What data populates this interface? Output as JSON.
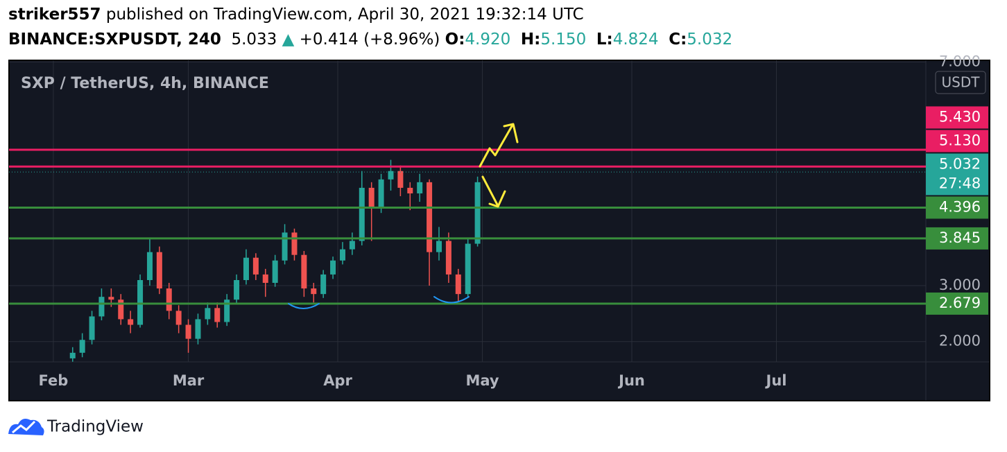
{
  "header": {
    "user": "striker557",
    "published": "published on TradingView.com, April 30, 2021 19:32:14 UTC",
    "symbol": "BINANCE:SXPUSDT, 240",
    "last": "5.033",
    "change": "+0.414 (+8.96%)",
    "ohlc": [
      {
        "key": "O:",
        "value": "4.920"
      },
      {
        "key": "H:",
        "value": "5.150"
      },
      {
        "key": "L:",
        "value": "4.824"
      },
      {
        "key": "C:",
        "value": "5.032"
      }
    ]
  },
  "footer": {
    "brand": "TradingView"
  },
  "chart_data": {
    "type": "candlestick",
    "title": "SXP / TetherUS, 4h, BINANCE",
    "currency": "USDT",
    "up_color": "#26a69a",
    "down_color": "#ef5350",
    "x": [
      4,
      6,
      8,
      10,
      12,
      14,
      16,
      18,
      20,
      22,
      24,
      26,
      28,
      30,
      32,
      34,
      36,
      38,
      40,
      42,
      44,
      46,
      48,
      50,
      52,
      54,
      56,
      58,
      60,
      62,
      64,
      66,
      68,
      70,
      72,
      74,
      76,
      78,
      80,
      82,
      84,
      86,
      88
    ],
    "open": [
      1.7,
      1.8,
      2.03,
      2.45,
      2.8,
      2.75,
      2.4,
      2.3,
      3.1,
      3.6,
      2.95,
      2.55,
      2.3,
      2.05,
      2.4,
      2.6,
      2.35,
      2.75,
      3.1,
      3.5,
      3.2,
      3.05,
      3.45,
      3.95,
      3.55,
      2.95,
      2.85,
      3.2,
      3.45,
      3.65,
      3.8,
      4.75,
      4.4,
      4.9,
      5.05,
      4.75,
      4.65,
      4.85,
      3.6,
      3.8,
      3.2,
      2.85,
      3.75
    ],
    "high": [
      1.9,
      2.15,
      2.55,
      2.95,
      2.95,
      2.85,
      2.55,
      3.2,
      3.85,
      3.7,
      3.05,
      2.65,
      2.4,
      2.5,
      2.7,
      2.7,
      2.85,
      3.2,
      3.65,
      3.58,
      3.3,
      3.55,
      4.1,
      4.02,
      3.62,
      3.05,
      3.28,
      3.52,
      3.78,
      3.95,
      5.05,
      4.85,
      5.0,
      5.25,
      5.15,
      4.85,
      5.0,
      4.9,
      4.05,
      3.95,
      3.3,
      3.85,
      4.95
    ],
    "low": [
      1.64,
      1.72,
      1.95,
      2.38,
      2.62,
      2.3,
      2.15,
      2.25,
      3.0,
      2.85,
      2.4,
      2.15,
      1.8,
      1.95,
      2.3,
      2.25,
      2.28,
      2.68,
      3.02,
      3.1,
      2.8,
      2.98,
      3.38,
      3.45,
      2.8,
      2.7,
      2.78,
      3.12,
      3.38,
      3.55,
      3.72,
      3.8,
      4.3,
      4.7,
      4.6,
      4.35,
      4.5,
      3.0,
      3.45,
      3.05,
      2.72,
      2.78,
      3.7
    ],
    "close": [
      1.8,
      2.03,
      2.45,
      2.8,
      2.75,
      2.4,
      2.3,
      3.1,
      3.6,
      2.95,
      2.55,
      2.3,
      2.05,
      2.4,
      2.6,
      2.35,
      2.75,
      3.1,
      3.5,
      3.2,
      3.05,
      3.45,
      3.95,
      3.55,
      2.95,
      2.85,
      3.2,
      3.45,
      3.65,
      3.8,
      4.75,
      4.4,
      4.9,
      5.05,
      4.75,
      4.65,
      4.85,
      3.6,
      3.8,
      3.2,
      2.85,
      3.75,
      4.85
    ],
    "xlim": [
      -9.2,
      181.0
    ],
    "xticks": [
      {
        "value": 0,
        "label": "Feb"
      },
      {
        "value": 28,
        "label": "Mar"
      },
      {
        "value": 59,
        "label": "Apr"
      },
      {
        "value": 89,
        "label": "May"
      },
      {
        "value": 120,
        "label": "Jun"
      },
      {
        "value": 150,
        "label": "Jul"
      }
    ],
    "ylim": [
      1.637,
      7.03
    ],
    "yticks": [
      {
        "value": 2,
        "label": "2.000"
      },
      {
        "value": 3,
        "label": "3.000"
      },
      {
        "value": 7,
        "label": "7.000"
      }
    ],
    "levels": [
      {
        "value": 5.43,
        "label": "5.430",
        "color": "#e91e63"
      },
      {
        "value": 5.13,
        "label": "5.130",
        "color": "#e91e63"
      },
      {
        "value": 4.396,
        "color": "#388e3c"
      },
      {
        "value": 3.845,
        "color": "#388e3c"
      },
      {
        "value": 2.679,
        "color": "#388e3c"
      }
    ],
    "last_price": {
      "value": 5.032,
      "countdown": "27:48",
      "color": "#26a69a"
    }
  }
}
